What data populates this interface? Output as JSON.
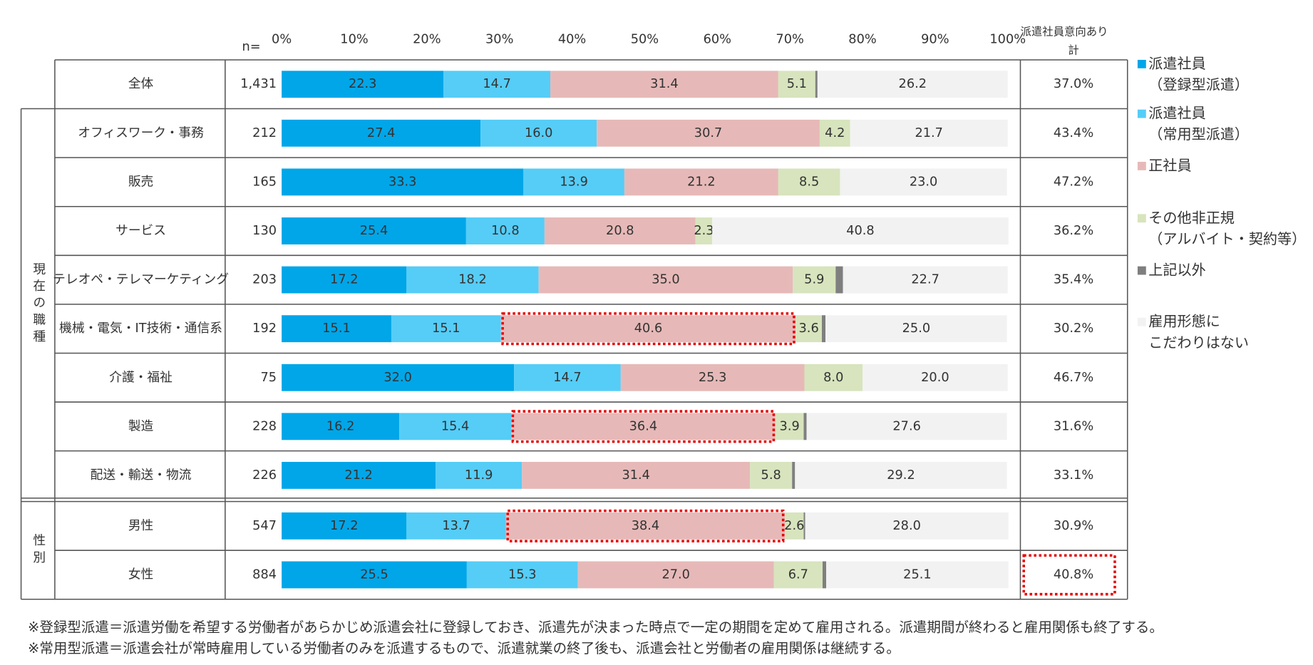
{
  "chart_data": {
    "type": "bar",
    "orientation": "horizontal",
    "stacked": true,
    "n_label": "n=",
    "total_header": [
      "派遣社員意向あり",
      "計"
    ],
    "categories": [
      "全体",
      "オフィスワーク・事務",
      "販売",
      "サービス",
      "テレオペ・テレマーケティング",
      "機械・電気・IT技術・通信系",
      "介護・福祉",
      "製造",
      "配送・輸送・物流",
      "男性",
      "女性"
    ],
    "n": [
      "1,431",
      "212",
      "165",
      "130",
      "203",
      "192",
      "75",
      "228",
      "226",
      "547",
      "884"
    ],
    "groups": [
      {
        "label": "現在の職種",
        "categories": [
          "オフィスワーク・事務",
          "販売",
          "サービス",
          "テレオペ・テレマーケティング",
          "機械・電気・IT技術・通信系",
          "介護・福祉",
          "製造",
          "配送・輸送・物流"
        ]
      },
      {
        "label": "性別",
        "categories": [
          "男性",
          "女性"
        ]
      }
    ],
    "xlim": [
      0,
      100
    ],
    "xticks": [
      {
        "value": 0,
        "label": "0%"
      },
      {
        "value": 10,
        "label": "10%"
      },
      {
        "value": 20,
        "label": "20%"
      },
      {
        "value": 30,
        "label": "30%"
      },
      {
        "value": 40,
        "label": "40%"
      },
      {
        "value": 50,
        "label": "50%"
      },
      {
        "value": 60,
        "label": "60%"
      },
      {
        "value": 70,
        "label": "70%"
      },
      {
        "value": 80,
        "label": "80%"
      },
      {
        "value": 90,
        "label": "90%"
      },
      {
        "value": 100,
        "label": "100%"
      }
    ],
    "series": [
      {
        "name": "派遣社員\n（登録型派遣）",
        "color": "#00a6e8",
        "values": [
          22.3,
          27.4,
          33.3,
          25.4,
          17.2,
          15.1,
          32.0,
          16.2,
          21.2,
          17.2,
          25.5
        ],
        "value_labels": [
          "22.3",
          "27.4",
          "33.3",
          "25.4",
          "17.2",
          "15.1",
          "32.0",
          "16.2",
          "21.2",
          "17.2",
          "25.5"
        ]
      },
      {
        "name": "派遣社員\n（常用型派遣）",
        "color": "#55cdf7",
        "values": [
          14.7,
          16.0,
          13.9,
          10.8,
          18.2,
          15.1,
          14.7,
          15.4,
          11.9,
          13.7,
          15.3
        ],
        "value_labels": [
          "14.7",
          "16.0",
          "13.9",
          "10.8",
          "18.2",
          "15.1",
          "14.7",
          "15.4",
          "11.9",
          "13.7",
          "15.3"
        ]
      },
      {
        "name": "正社員",
        "color": "#e6b9b8",
        "values": [
          31.4,
          30.7,
          21.2,
          20.8,
          35.0,
          40.6,
          25.3,
          36.4,
          31.4,
          38.4,
          27.0
        ],
        "value_labels": [
          "31.4",
          "30.7",
          "21.2",
          "20.8",
          "35.0",
          "40.6",
          "25.3",
          "36.4",
          "31.4",
          "38.4",
          "27.0"
        ]
      },
      {
        "name": "その他非正規\n（アルバイト・契約等）",
        "color": "#d7e4bd",
        "values": [
          5.1,
          4.2,
          8.5,
          2.3,
          5.9,
          3.6,
          8.0,
          3.9,
          5.8,
          2.6,
          6.7
        ],
        "value_labels": [
          "5.1",
          "4.2",
          "8.5",
          "2.3",
          "5.9",
          "3.6",
          "8.0",
          "3.9",
          "5.8",
          "2.6",
          "6.7"
        ]
      },
      {
        "name": "上記以外",
        "color": "#7f7f7f",
        "label_position": "right",
        "values": [
          0.3,
          null,
          null,
          null,
          1.0,
          0.5,
          null,
          0.4,
          0.4,
          0.2,
          0.5
        ],
        "value_labels": [
          "0.3",
          null,
          null,
          null,
          "1.0",
          "0.5",
          null,
          "0.4",
          "0.4",
          "0.2",
          "0.5"
        ]
      },
      {
        "name": "雇用形態に\nこだわりはない",
        "color": "#f2f2f2",
        "values": [
          26.2,
          21.7,
          23.0,
          40.8,
          22.7,
          25.0,
          20.0,
          27.6,
          29.2,
          28.0,
          25.1
        ],
        "value_labels": [
          "26.2",
          "21.7",
          "23.0",
          "40.8",
          "22.7",
          "25.0",
          "20.0",
          "27.6",
          "29.2",
          "28.0",
          "25.1"
        ]
      }
    ],
    "totals": {
      "values": [
        37.0,
        43.4,
        47.2,
        36.2,
        35.4,
        30.2,
        46.7,
        31.6,
        33.1,
        30.9,
        40.8
      ],
      "value_labels": [
        "37.0%",
        "43.4%",
        "47.2%",
        "36.2%",
        "35.4%",
        "30.2%",
        "46.7%",
        "31.6%",
        "33.1%",
        "30.9%",
        "40.8%"
      ]
    },
    "highlight": {
      "series": "正社員",
      "categories": [
        "機械・電気・IT技術・通信系",
        "製造",
        "男性"
      ],
      "total_categories": [
        "女性"
      ],
      "color": "#e60000"
    },
    "notes": [
      "※登録型派遣＝派遣労働を希望する労働者があらかじめ派遣会社に登録しておき、派遣先が決まった時点で一定の期間を定めて雇用される。派遣期間が終わると雇用関係も終了する。",
      "※常用型派遣＝派遣会社が常時雇用している労働者のみを派遣するもので、派遣就業の終了後も、派遣会社と労働者の雇用関係は継続する。"
    ]
  }
}
